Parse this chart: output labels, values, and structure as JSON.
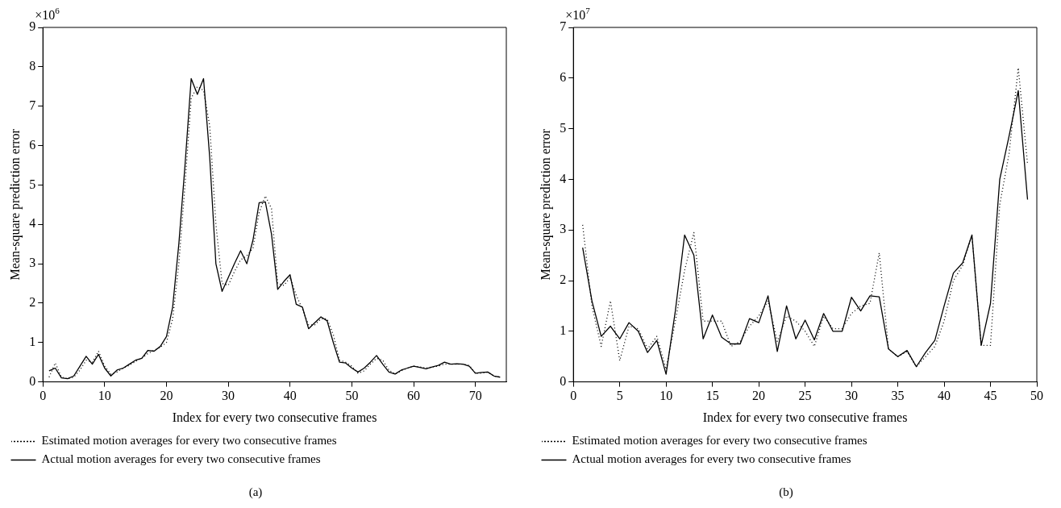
{
  "chart_data": [
    {
      "type": "line",
      "title": "(a)",
      "xlabel": "Index for every two consecutive frames",
      "ylabel": "Mean-square prediction error",
      "annotations": [
        "×10$^{6}$"
      ],
      "legend": "bottom",
      "grid": false,
      "marker": "none",
      "x": [
        1,
        2,
        3,
        4,
        5,
        6,
        7,
        8,
        9,
        10,
        11,
        12,
        13,
        14,
        15,
        16,
        17,
        18,
        19,
        20,
        21,
        22,
        23,
        24,
        25,
        26,
        27,
        28,
        29,
        30,
        31,
        32,
        33,
        34,
        35,
        36,
        37,
        38,
        39,
        40,
        41,
        42,
        43,
        44,
        45,
        46,
        47,
        48,
        49,
        50,
        51,
        52,
        53,
        54,
        55,
        56,
        57,
        58,
        59,
        60,
        61,
        62,
        63,
        64,
        65,
        66,
        67,
        68,
        69,
        70,
        71,
        72,
        73,
        74
      ],
      "xlim": [
        0,
        75
      ],
      "xticks": [
        0,
        10,
        20,
        30,
        40,
        50,
        60,
        70
      ],
      "ylim": [
        0,
        9
      ],
      "yticks": [
        0,
        1,
        2,
        3,
        4,
        5,
        6,
        7,
        8,
        9
      ],
      "series": [
        {
          "name": "Estimated motion averages for every two consecutive frames",
          "color": "#000000",
          "line_style": "dotted",
          "values": [
            0.12,
            0.48,
            0.12,
            0.08,
            0.12,
            0.3,
            0.55,
            0.5,
            0.78,
            0.4,
            0.2,
            0.25,
            0.35,
            0.42,
            0.52,
            0.6,
            0.72,
            0.8,
            0.88,
            1.0,
            1.6,
            3.0,
            5.0,
            7.2,
            7.5,
            7.4,
            6.5,
            4.0,
            2.5,
            2.45,
            2.8,
            3.1,
            3.2,
            3.4,
            4.3,
            4.72,
            4.4,
            2.5,
            2.45,
            2.65,
            2.2,
            1.85,
            1.45,
            1.45,
            1.6,
            1.6,
            1.2,
            0.55,
            0.5,
            0.4,
            0.22,
            0.28,
            0.45,
            0.6,
            0.55,
            0.3,
            0.2,
            0.28,
            0.35,
            0.4,
            0.38,
            0.35,
            0.38,
            0.4,
            0.45,
            0.45,
            0.45,
            0.45,
            0.42,
            0.22,
            0.22,
            0.25,
            0.15,
            0.12
          ]
        },
        {
          "name": "Actual motion averages for every two consecutive frames",
          "color": "#000000",
          "line_style": "solid",
          "values": [
            0.28,
            0.35,
            0.1,
            0.08,
            0.15,
            0.4,
            0.65,
            0.45,
            0.7,
            0.35,
            0.15,
            0.3,
            0.35,
            0.45,
            0.55,
            0.6,
            0.8,
            0.78,
            0.9,
            1.15,
            1.9,
            3.5,
            5.5,
            7.7,
            7.3,
            7.7,
            5.7,
            3.0,
            2.3,
            2.65,
            3.0,
            3.33,
            3.0,
            3.6,
            4.55,
            4.57,
            3.75,
            2.35,
            2.55,
            2.72,
            1.97,
            1.9,
            1.35,
            1.5,
            1.65,
            1.55,
            1.0,
            0.5,
            0.48,
            0.35,
            0.25,
            0.35,
            0.5,
            0.67,
            0.45,
            0.25,
            0.2,
            0.3,
            0.35,
            0.4,
            0.37,
            0.33,
            0.38,
            0.42,
            0.5,
            0.45,
            0.46,
            0.45,
            0.4,
            0.22,
            0.24,
            0.25,
            0.15,
            0.12
          ]
        }
      ]
    },
    {
      "type": "line",
      "title": "(b)",
      "xlabel": "Index for every two consecutive frames",
      "ylabel": "Mean-square prediction error",
      "annotations": [
        "×10$^{7}$"
      ],
      "legend": "bottom",
      "grid": false,
      "marker": "none",
      "x": [
        1,
        2,
        3,
        4,
        5,
        6,
        7,
        8,
        9,
        10,
        11,
        12,
        13,
        14,
        15,
        16,
        17,
        18,
        19,
        20,
        21,
        22,
        23,
        24,
        25,
        26,
        27,
        28,
        29,
        30,
        31,
        32,
        33,
        34,
        35,
        36,
        37,
        38,
        39,
        40,
        41,
        42,
        43,
        44,
        45,
        46,
        47,
        48,
        49
      ],
      "xlim": [
        0,
        50
      ],
      "xticks": [
        0,
        5,
        10,
        15,
        20,
        25,
        30,
        35,
        40,
        45,
        50
      ],
      "ylim": [
        0,
        7
      ],
      "yticks": [
        0,
        1,
        2,
        3,
        4,
        5,
        6,
        7
      ],
      "series": [
        {
          "name": "Estimated motion averages for every two consecutive frames",
          "color": "#000000",
          "line_style": "dotted",
          "values": [
            3.1,
            1.5,
            0.7,
            1.6,
            0.42,
            1.1,
            1.05,
            0.65,
            0.9,
            0.25,
            1.2,
            2.2,
            2.95,
            1.2,
            1.2,
            1.2,
            0.7,
            0.8,
            1.1,
            1.3,
            1.6,
            0.8,
            1.3,
            1.2,
            1.0,
            0.7,
            1.3,
            1.05,
            1.05,
            1.35,
            1.5,
            1.55,
            2.55,
            0.65,
            0.5,
            0.6,
            0.3,
            0.5,
            0.7,
            1.2,
            2.0,
            2.3,
            2.9,
            0.72,
            0.72,
            3.5,
            4.5,
            6.2,
            4.3
          ]
        },
        {
          "name": "Actual motion averages for every two consecutive frames",
          "color": "#000000",
          "line_style": "solid",
          "values": [
            2.65,
            1.6,
            0.9,
            1.1,
            0.85,
            1.17,
            1.0,
            0.58,
            0.82,
            0.15,
            1.4,
            2.9,
            2.5,
            0.85,
            1.32,
            0.88,
            0.75,
            0.75,
            1.25,
            1.17,
            1.7,
            0.6,
            1.5,
            0.85,
            1.22,
            0.83,
            1.35,
            1.0,
            1.0,
            1.67,
            1.4,
            1.7,
            1.68,
            0.65,
            0.5,
            0.62,
            0.3,
            0.58,
            0.82,
            1.5,
            2.15,
            2.35,
            2.9,
            0.72,
            1.55,
            4.0,
            4.85,
            5.75,
            3.6
          ]
        }
      ]
    }
  ]
}
